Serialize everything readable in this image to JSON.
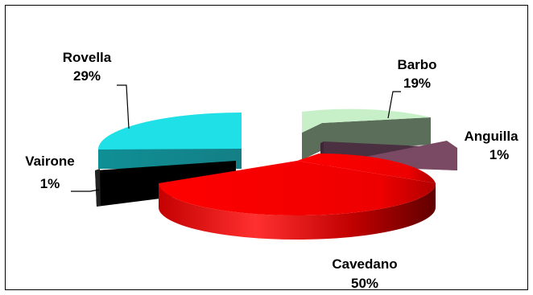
{
  "chart_data": {
    "type": "pie",
    "style": "3d-exploded",
    "title": "",
    "legend": "none",
    "slices": [
      {
        "name": "Barbo",
        "percent": 19,
        "label": "19%",
        "color": "#c8f0c8"
      },
      {
        "name": "Anguilla",
        "percent": 1,
        "label": "1%",
        "color": "#7a4a64"
      },
      {
        "name": "Cavedano",
        "percent": 50,
        "label": "50%",
        "color": "#ff0000"
      },
      {
        "name": "Vairone",
        "percent": 1,
        "label": "1%",
        "color": "#000000"
      },
      {
        "name": "Rovella",
        "percent": 29,
        "label": "29%",
        "color": "#1ee0e6"
      }
    ]
  }
}
